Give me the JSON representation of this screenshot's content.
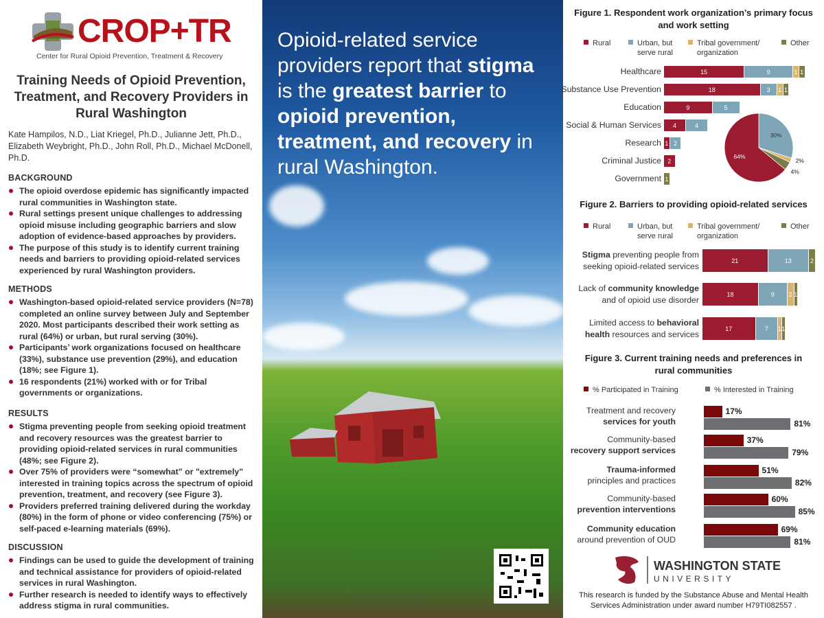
{
  "logo": {
    "name": "CROP+TR",
    "subtitle": "Center for Rural Opioid Prevention, Treatment & Recovery"
  },
  "title": "Training Needs of Opioid Prevention, Treatment, and Recovery Providers in Rural Washington",
  "authors": "Kate Hampilos, N.D., Liat Kriegel, Ph.D., Julianne Jett, Ph.D., Elizabeth Weybright, Ph.D.,  John Roll, Ph.D., Michael McDonell, Ph.D.",
  "sections": [
    {
      "heading": "BACKGROUND",
      "items": [
        "The opioid overdose epidemic has significantly impacted rural communities in Washington state.",
        "Rural settings present unique challenges to addressing opioid misuse including geographic barriers and slow adoption of evidence-based approaches by providers.",
        "The purpose of this study is to identify current training needs and barriers to providing opioid-related services experienced by rural Washington providers."
      ]
    },
    {
      "heading": "METHODS",
      "items": [
        "Washington-based opioid-related service providers (N=78) completed an online survey between July and September 2020. Most participants described their work setting as rural (64%) or urban, but rural serving (30%).",
        "Participants’ work organizations focused on healthcare (33%), substance use prevention (29%), and education (18%; see Figure 1).",
        "16 respondents (21%) worked with or for Tribal governments or organizations."
      ]
    },
    {
      "heading": "RESULTS",
      "items": [
        "Stigma preventing people from seeking opioid treatment and recovery resources was the greatest barrier to providing opioid-related services in rural communities (48%; see Figure 2).",
        "Over 75% of providers were “somewhat” or \"extremely\" interested in training topics across the spectrum of opioid prevention, treatment, and recovery (see Figure 3).",
        "Providers preferred training delivered during the workday (80%) in the form of phone or video conferencing (75%) or self-paced e-learning materials (69%)."
      ]
    },
    {
      "heading": "DISCUSSION",
      "items": [
        "Findings can be used to guide the development of training and technical assistance for providers of opioid-related services in rural Washington.",
        "Further research is needed to identify ways to effectively address stigma in rural communities."
      ]
    }
  ],
  "headline": {
    "p1": "Opioid-related service providers report that ",
    "b1": "stigma",
    "p2": " is the ",
    "b2": "greatest barrier",
    "p3": " to ",
    "b3": "opioid prevention, treatment, and recovery",
    "p4": " in rural Washington."
  },
  "colors": {
    "rural": "#9b1b30",
    "urban": "#7ea6b6",
    "tribal": "#d9b46a",
    "other": "#7c7c4a",
    "participated": "#7a0a0a",
    "interested": "#6d6e71"
  },
  "legend": {
    "rural": "Rural",
    "urban_1": "Urban, but",
    "urban_2": "serve rural",
    "tribal_1": "Tribal government/",
    "tribal_2": "organization",
    "other": "Other"
  },
  "chart_data": [
    {
      "type": "bar",
      "title": "Figure 1. Respondent work organization’s primary focus and work setting",
      "categories": [
        "Healthcare",
        "Substance Use Prevention",
        "Education",
        "Social & Human Services",
        "Research",
        "Criminal Justice",
        "Government"
      ],
      "series": [
        {
          "name": "Rural",
          "values": [
            15,
            18,
            9,
            4,
            1,
            2,
            0
          ]
        },
        {
          "name": "Urban, but serve rural",
          "values": [
            9,
            3,
            5,
            4,
            2,
            0,
            0
          ]
        },
        {
          "name": "Tribal government/ organization",
          "values": [
            1,
            1,
            0,
            0,
            0,
            0,
            0
          ]
        },
        {
          "name": "Other",
          "values": [
            1,
            1,
            0,
            0,
            0,
            0,
            1
          ]
        }
      ],
      "pie": {
        "type": "pie",
        "labels": [
          "Rural",
          "Urban, but serve rural",
          "Tribal government/ organization",
          "Other"
        ],
        "values": [
          64,
          30,
          2,
          4
        ],
        "value_labels": [
          "64%",
          "30%",
          "2%",
          "4%"
        ]
      }
    },
    {
      "type": "bar",
      "title": "Figure 2. Barriers to providing opioid-related services",
      "categories": [
        {
          "pre": "",
          "bold": "Stigma",
          "post": " preventing people from",
          "line2_pre": "seeking opioid-related services",
          "line2_bold": "",
          "line2_post": ""
        },
        {
          "pre": "Lack of ",
          "bold": "community knowledge",
          "post": "",
          "line2_pre": "and of opioid use disorder",
          "line2_bold": "",
          "line2_post": ""
        },
        {
          "pre": "Limited access to ",
          "bold": "behavioral",
          "post": "",
          "line2_pre": "",
          "line2_bold": "health",
          "line2_post": " resources and services"
        }
      ],
      "series": [
        {
          "name": "Rural",
          "values": [
            21,
            18,
            17
          ]
        },
        {
          "name": "Urban, but serve rural",
          "values": [
            13,
            9,
            7
          ]
        },
        {
          "name": "Tribal government/ organization",
          "values": [
            0,
            2,
            1
          ]
        },
        {
          "name": "Other",
          "values": [
            2,
            1,
            1
          ]
        }
      ]
    },
    {
      "type": "bar",
      "title": "Figure 3. Current training needs and preferences in rural communities",
      "categories": [
        {
          "l1": "Treatment and recovery",
          "l1b": false,
          "l2": "services for youth",
          "l2b": true
        },
        {
          "l1": "Community-based",
          "l1b": false,
          "l2": "recovery support services",
          "l2b": true
        },
        {
          "l1": "Trauma-informed",
          "l1b": true,
          "l2": "principles and practices",
          "l2b": false
        },
        {
          "l1": "Community-based",
          "l1b": false,
          "l2": "prevention interventions",
          "l2b": true
        },
        {
          "l1": "Community education",
          "l1b": true,
          "l2": "around prevention of OUD",
          "l2b": false
        }
      ],
      "series": [
        {
          "name": "% Participated in Training",
          "values": [
            17,
            37,
            51,
            60,
            69
          ]
        },
        {
          "name": "% Interested in Training",
          "values": [
            81,
            79,
            82,
            85,
            81
          ]
        }
      ]
    }
  ],
  "wsu": {
    "name": "WASHINGTON STATE",
    "sub": "UNIVERSITY"
  },
  "funding": "This research is funded by the Substance Abuse and Mental Health Services Administration under award number H79TI082557 ."
}
